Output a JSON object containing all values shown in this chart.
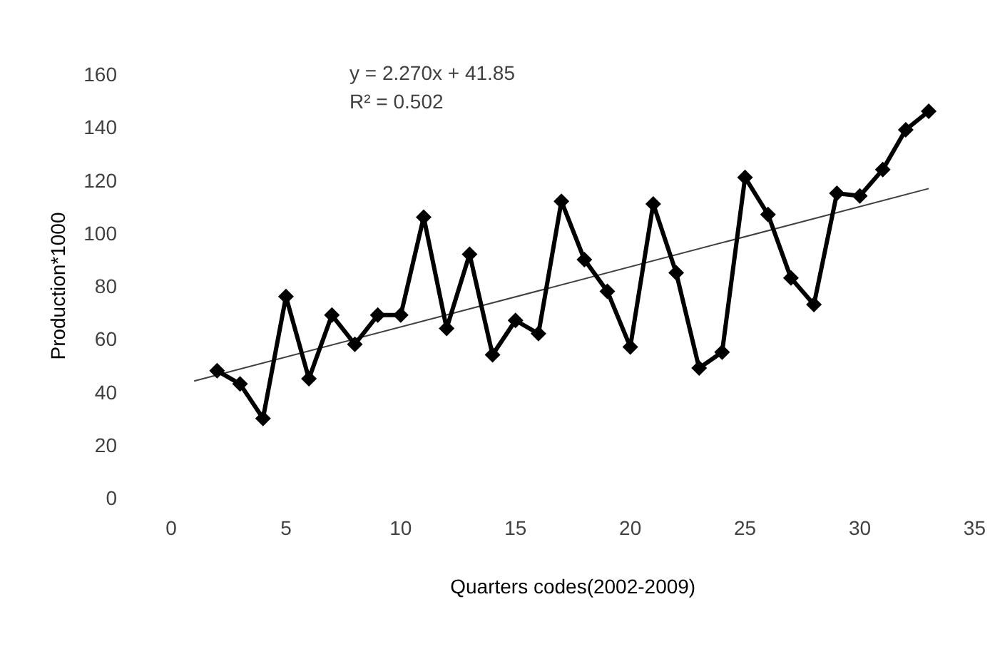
{
  "chart_data": {
    "type": "line",
    "xlabel": "Quarters codes(2002-2009)",
    "ylabel": "Production*1000",
    "annotations": [
      "y = 2.270x + 41.85",
      "R² = 0.502"
    ],
    "xlim": [
      0,
      35
    ],
    "xticks": [
      0,
      5,
      10,
      15,
      20,
      25,
      30,
      35
    ],
    "ylim": [
      0,
      160
    ],
    "yticks": [
      0,
      20,
      40,
      60,
      80,
      100,
      120,
      140,
      160
    ],
    "grid": false,
    "marker": "diamond",
    "line_style": "solid",
    "series": [
      {
        "color": "#000000",
        "x": [
          2,
          3,
          4,
          5,
          6,
          7,
          8,
          9,
          10,
          11,
          12,
          13,
          14,
          15,
          16,
          17,
          18,
          19,
          20,
          21,
          22,
          23,
          24,
          25,
          26,
          27,
          28,
          29,
          30,
          31,
          32,
          33
        ],
        "values": [
          48,
          43,
          30,
          76,
          45,
          69,
          58,
          69,
          69,
          106,
          64,
          92,
          54,
          67,
          62,
          112,
          90,
          78,
          57,
          111,
          85,
          49,
          55,
          121,
          107,
          83,
          73,
          115,
          114,
          124,
          139,
          146
        ]
      },
      {
        "type": "line",
        "marker": "none",
        "color": "#404040",
        "x": [
          1,
          33
        ],
        "values": [
          44.1,
          116.8
        ]
      }
    ]
  }
}
